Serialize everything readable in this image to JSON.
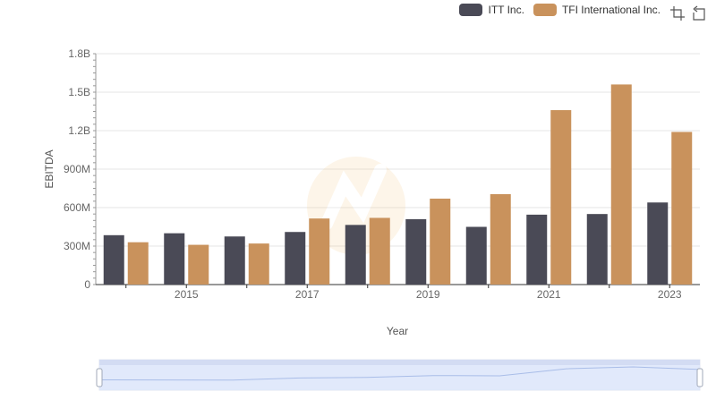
{
  "legend": {
    "items": [
      {
        "label": "ITT Inc.",
        "color": "#4a4a56"
      },
      {
        "label": "TFI International Inc.",
        "color": "#c9925c"
      }
    ]
  },
  "toolbar": {
    "icons": [
      "zoom-rect-icon",
      "restore-icon"
    ]
  },
  "chart_data": {
    "type": "bar",
    "x": [
      2014,
      2015,
      2016,
      2017,
      2018,
      2019,
      2020,
      2021,
      2022,
      2023
    ],
    "x_tick_labels": [
      "2015",
      "2017",
      "2019",
      "2021",
      "2023"
    ],
    "y_tick_labels": [
      "0",
      "300M",
      "600M",
      "900M",
      "1.2B",
      "1.5B",
      "1.8B"
    ],
    "ylim": [
      0,
      1800000000
    ],
    "xlabel": "Year",
    "ylabel": "EBITDA",
    "grid": true,
    "legend_position": "top-right",
    "series": [
      {
        "name": "ITT Inc.",
        "color": "#4a4a56",
        "values": [
          385000000,
          400000000,
          375000000,
          410000000,
          465000000,
          510000000,
          450000000,
          545000000,
          550000000,
          640000000
        ]
      },
      {
        "name": "TFI International Inc.",
        "color": "#c9925c",
        "values": [
          330000000,
          310000000,
          320000000,
          515000000,
          520000000,
          670000000,
          705000000,
          1360000000,
          1560000000,
          1190000000
        ]
      }
    ],
    "data_zoom": {
      "start": 0,
      "end": 100
    }
  }
}
